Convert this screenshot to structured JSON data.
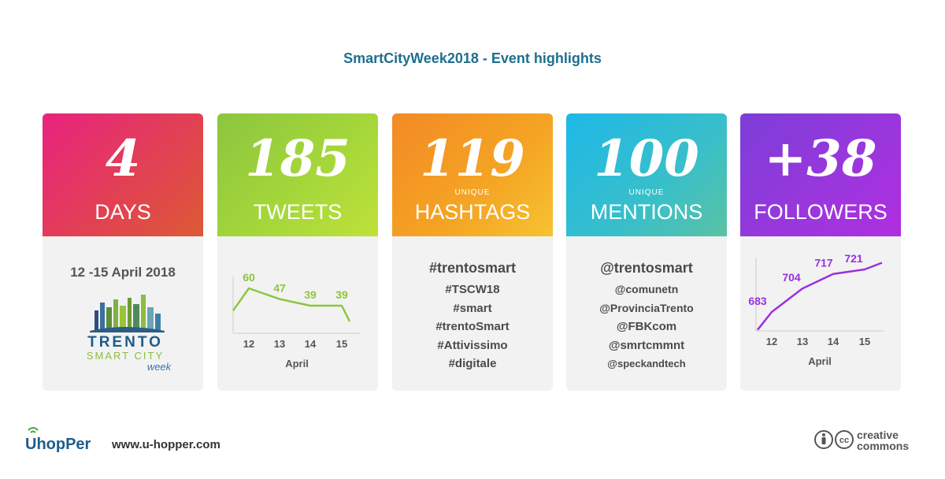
{
  "title": "SmartCityWeek2018 - Event highlights",
  "colors": {
    "title": "#1e6f8e",
    "tweets_line": "#8cc63f",
    "followers_line": "#9b30e0"
  },
  "cards": [
    {
      "number": "4",
      "unique": "",
      "label": "DAYS"
    },
    {
      "number": "185",
      "unique": "",
      "label": "TWEETS"
    },
    {
      "number": "119",
      "unique": "UNIQUE",
      "label": "HASHTAGS"
    },
    {
      "number": "100",
      "unique": "UNIQUE",
      "label": "MENTIONS"
    },
    {
      "number": "+38",
      "unique": "",
      "label": "FOLLOWERS"
    }
  ],
  "days_card": {
    "dates": "12 -15 April 2018",
    "logo": {
      "line1": "TRENTO",
      "line2": "SMART CITY",
      "line3": "week"
    }
  },
  "hashtags": [
    "#trentosmart",
    "#TSCW18",
    "#smart",
    "#trentoSmart",
    "#Attivissimo",
    "#digitale"
  ],
  "mentions": [
    "@trentosmart",
    "@comunetn",
    "@ProvinciaTrento",
    "@FBKcom",
    "@smrtcmmnt",
    "@speckandtech"
  ],
  "chart_data": [
    {
      "type": "line",
      "title": "TWEETS",
      "x": [
        "12",
        "13",
        "14",
        "15"
      ],
      "xlabel": "April",
      "series": [
        {
          "values": [
            60,
            47,
            39,
            39
          ]
        }
      ],
      "data_labels": [
        "60",
        "47",
        "39",
        "39"
      ],
      "grid": false
    },
    {
      "type": "line",
      "title": "FOLLOWERS",
      "x": [
        "12",
        "13",
        "14",
        "15"
      ],
      "xlabel": "April",
      "series": [
        {
          "values": [
            683,
            704,
            717,
            721
          ]
        }
      ],
      "data_labels": [
        "683",
        "704",
        "717",
        "721"
      ],
      "grid": false
    }
  ],
  "footer": {
    "brand": "UhopPer",
    "website": "www.u-hopper.com",
    "license_icons": "cc-by-icon",
    "license_line1": "creative",
    "license_line2": "commons"
  }
}
